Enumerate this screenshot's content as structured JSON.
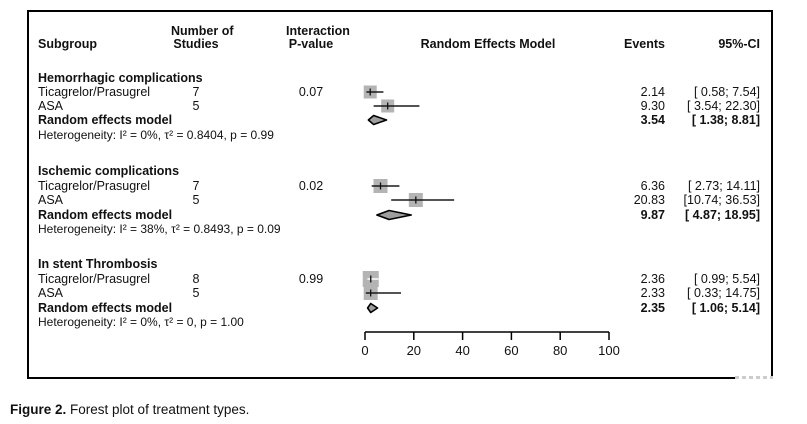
{
  "header": {
    "subgroup": "Subgroup",
    "studies_line1": "Number of",
    "studies_line2": "Studies",
    "pvalue_line1": "Interaction",
    "pvalue_line2": "P-value",
    "model": "Random Effects Model",
    "events": "Events",
    "ci": "95%-CI"
  },
  "groups": [
    {
      "title": "Hemorrhagic complications",
      "rows": [
        {
          "label": "Ticagrelor/Prasugrel",
          "studies": "7",
          "pvalue": "0.07",
          "events": "2.14",
          "ci": "[ 0.58;  7.54]"
        },
        {
          "label": "ASA",
          "studies": "5",
          "pvalue": "",
          "events": "9.30",
          "ci": "[ 3.54; 22.30]"
        }
      ],
      "summary": {
        "label": "Random effects model",
        "events": "3.54",
        "ci": "[ 1.38;  8.81]"
      },
      "heterogeneity": "Heterogeneity: I² = 0%, τ² = 0.8404, p = 0.99"
    },
    {
      "title": "Ischemic complications",
      "rows": [
        {
          "label": "Ticagrelor/Prasugrel",
          "studies": "7",
          "pvalue": "0.02",
          "events": "6.36",
          "ci": "[ 2.73; 14.11]"
        },
        {
          "label": "ASA",
          "studies": "5",
          "pvalue": "",
          "events": "20.83",
          "ci": "[10.74; 36.53]"
        }
      ],
      "summary": {
        "label": "Random effects model",
        "events": "9.87",
        "ci": "[ 4.87; 18.95]"
      },
      "heterogeneity": "Heterogeneity: I² = 38%, τ² = 0.8493, p = 0.09"
    },
    {
      "title": "In stent Thrombosis",
      "rows": [
        {
          "label": "Ticagrelor/Prasugrel",
          "studies": "8",
          "pvalue": "0.99",
          "events": "2.36",
          "ci": "[ 0.99;  5.54]"
        },
        {
          "label": "ASA",
          "studies": "5",
          "pvalue": "",
          "events": "2.33",
          "ci": "[ 0.33; 14.75]"
        }
      ],
      "summary": {
        "label": "Random effects model",
        "events": "2.35",
        "ci": "[ 1.06;  5.14]"
      },
      "heterogeneity": "Heterogeneity: I² = 0%, τ² = 0, p = 1.00"
    }
  ],
  "caption": {
    "prefix": "Figure 2.",
    "text": "Forest plot of treatment types."
  },
  "colors": {
    "square_fill": "#b4b4b4",
    "diamond_fill": "#9e9e9e",
    "line": "#1a1a1a",
    "text": "#111111"
  },
  "chart_data": {
    "type": "scatter",
    "subtype": "forest",
    "title": "",
    "xlabel": "",
    "xlim": [
      0,
      100
    ],
    "xticks": [
      0,
      20,
      40,
      60,
      80,
      100
    ],
    "legend": "none",
    "grid": false,
    "groups": [
      {
        "name": "Hemorrhagic complications",
        "studies": [
          {
            "label": "Ticagrelor/Prasugrel",
            "n_studies": 7,
            "interaction_p": 0.07,
            "estimate": 2.14,
            "ci_low": 0.58,
            "ci_high": 7.54,
            "marker_size": 13
          },
          {
            "label": "ASA",
            "n_studies": 5,
            "estimate": 9.3,
            "ci_low": 3.54,
            "ci_high": 22.3,
            "marker_size": 13
          }
        ],
        "summary": {
          "estimate": 3.54,
          "ci_low": 1.38,
          "ci_high": 8.81
        },
        "heterogeneity": {
          "I2": "0%",
          "tau2": 0.8404,
          "p": 0.99
        }
      },
      {
        "name": "Ischemic complications",
        "studies": [
          {
            "label": "Ticagrelor/Prasugrel",
            "n_studies": 7,
            "interaction_p": 0.02,
            "estimate": 6.36,
            "ci_low": 2.73,
            "ci_high": 14.11,
            "marker_size": 14
          },
          {
            "label": "ASA",
            "n_studies": 5,
            "estimate": 20.83,
            "ci_low": 10.74,
            "ci_high": 36.53,
            "marker_size": 14
          }
        ],
        "summary": {
          "estimate": 9.87,
          "ci_low": 4.87,
          "ci_high": 18.95
        },
        "heterogeneity": {
          "I2": "38%",
          "tau2": 0.8493,
          "p": 0.09
        }
      },
      {
        "name": "In stent Thrombosis",
        "studies": [
          {
            "label": "Ticagrelor/Prasugrel",
            "n_studies": 8,
            "interaction_p": 0.99,
            "estimate": 2.36,
            "ci_low": 0.99,
            "ci_high": 5.54,
            "marker_size": 16
          },
          {
            "label": "ASA",
            "n_studies": 5,
            "estimate": 2.33,
            "ci_low": 0.33,
            "ci_high": 14.75,
            "marker_size": 14
          }
        ],
        "summary": {
          "estimate": 2.35,
          "ci_low": 1.06,
          "ci_high": 5.14
        },
        "heterogeneity": {
          "I2": "0%",
          "tau2": 0,
          "p": 1.0
        }
      }
    ]
  }
}
